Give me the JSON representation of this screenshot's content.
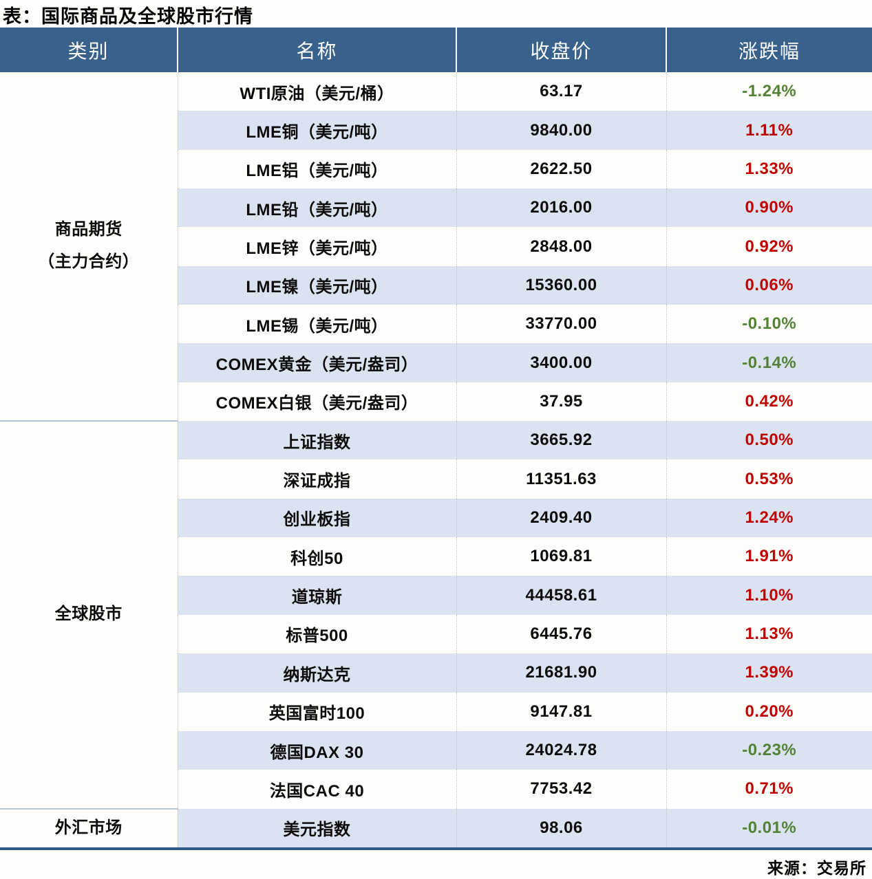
{
  "title": "表：国际商品及全球股市行情",
  "source": "来源：交易所",
  "columns": [
    "类别",
    "名称",
    "收盘价",
    "涨跌幅"
  ],
  "colors": {
    "header_bg": "#38618C",
    "stripe_bg": "#DAE3EF",
    "up_red": "#C00000",
    "down_green": "#538135",
    "bottom_border": "#2F5B8A"
  },
  "chart_data": {
    "type": "table",
    "title": "表：国际商品及全球股市行情",
    "columns": [
      "类别",
      "名称",
      "收盘价",
      "涨跌幅"
    ],
    "source": "来源：交易所",
    "sections": [
      {
        "category_lines": [
          "商品期货",
          "（主力合约）"
        ],
        "rows": [
          {
            "name": "WTI原油（美元/桶）",
            "close": "63.17",
            "change": "-1.24%"
          },
          {
            "name": "LME铜（美元/吨）",
            "close": "9840.00",
            "change": "1.11%"
          },
          {
            "name": "LME铝（美元/吨）",
            "close": "2622.50",
            "change": "1.33%"
          },
          {
            "name": "LME铅（美元/吨）",
            "close": "2016.00",
            "change": "0.90%"
          },
          {
            "name": "LME锌（美元/吨）",
            "close": "2848.00",
            "change": "0.92%"
          },
          {
            "name": "LME镍（美元/吨）",
            "close": "15360.00",
            "change": "0.06%"
          },
          {
            "name": "LME锡（美元/吨）",
            "close": "33770.00",
            "change": "-0.10%"
          },
          {
            "name": "COMEX黄金（美元/盎司）",
            "close": "3400.00",
            "change": "-0.14%"
          },
          {
            "name": "COMEX白银（美元/盎司）",
            "close": "37.95",
            "change": "0.42%"
          }
        ]
      },
      {
        "category_lines": [
          "全球股市"
        ],
        "rows": [
          {
            "name": "上证指数",
            "close": "3665.92",
            "change": "0.50%"
          },
          {
            "name": "深证成指",
            "close": "11351.63",
            "change": "0.53%"
          },
          {
            "name": "创业板指",
            "close": "2409.40",
            "change": "1.24%"
          },
          {
            "name": "科创50",
            "close": "1069.81",
            "change": "1.91%"
          },
          {
            "name": "道琼斯",
            "close": "44458.61",
            "change": "1.10%"
          },
          {
            "name": "标普500",
            "close": "6445.76",
            "change": "1.13%"
          },
          {
            "name": "纳斯达克",
            "close": "21681.90",
            "change": "1.39%"
          },
          {
            "name": "英国富时100",
            "close": "9147.81",
            "change": "0.20%"
          },
          {
            "name": "德国DAX 30",
            "close": "24024.78",
            "change": "-0.23%"
          },
          {
            "name": "法国CAC 40",
            "close": "7753.42",
            "change": "0.71%"
          }
        ]
      },
      {
        "category_lines": [
          "外汇市场"
        ],
        "rows": [
          {
            "name": "美元指数",
            "close": "98.06",
            "change": "-0.01%"
          }
        ]
      }
    ]
  }
}
